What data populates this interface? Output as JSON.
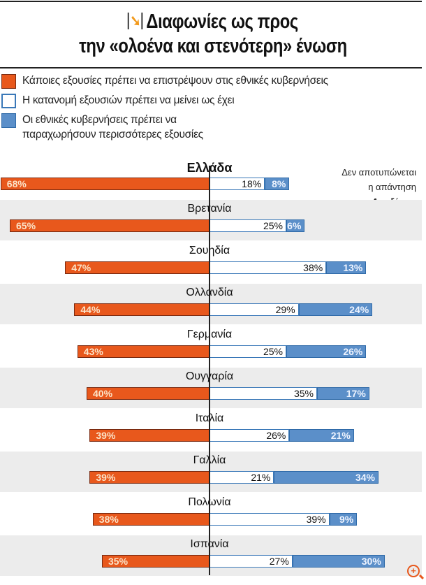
{
  "title_line1": "Διαφωνίες ως προς",
  "title_line2": "την «ολοένα και στενότερη» ένωση",
  "note": {
    "line1": "Δεν αποτυπώνεται",
    "line2": "η απάντηση",
    "line3": "«Δεν ξέρω»"
  },
  "chart_data": {
    "type": "bar",
    "orientation": "horizontal-diverging-stacked",
    "title": "Διαφωνίες ως προς την «ολοένα και στενότερη» ένωση",
    "categories": [
      "Ελλάδα",
      "Βρετανία",
      "Σουηδία",
      "Ολλανδία",
      "Γερμανία",
      "Ουγγαρία",
      "Ιταλία",
      "Γαλλία",
      "Πολωνία",
      "Ισπανία"
    ],
    "series": [
      {
        "name": "Κάποιες εξουσίες πρέπει να επιστρέψουν στις εθνικές κυβερνήσεις",
        "color": "#e8581c",
        "values": [
          68,
          65,
          47,
          44,
          43,
          40,
          39,
          39,
          38,
          35
        ]
      },
      {
        "name": "Η κατανομή εξουσιών πρέπει να μείνει ως έχει",
        "color": "#ffffff",
        "values": [
          18,
          25,
          38,
          29,
          25,
          35,
          26,
          21,
          39,
          27
        ]
      },
      {
        "name": "Οι εθνικές κυβερνήσεις πρέπει να παραχωρήσουν περισσότερες εξουσίες",
        "color": "#5b8fc9",
        "values": [
          8,
          6,
          13,
          24,
          26,
          17,
          21,
          34,
          9,
          30
        ]
      }
    ],
    "unit": "%",
    "legend": "top-left"
  }
}
